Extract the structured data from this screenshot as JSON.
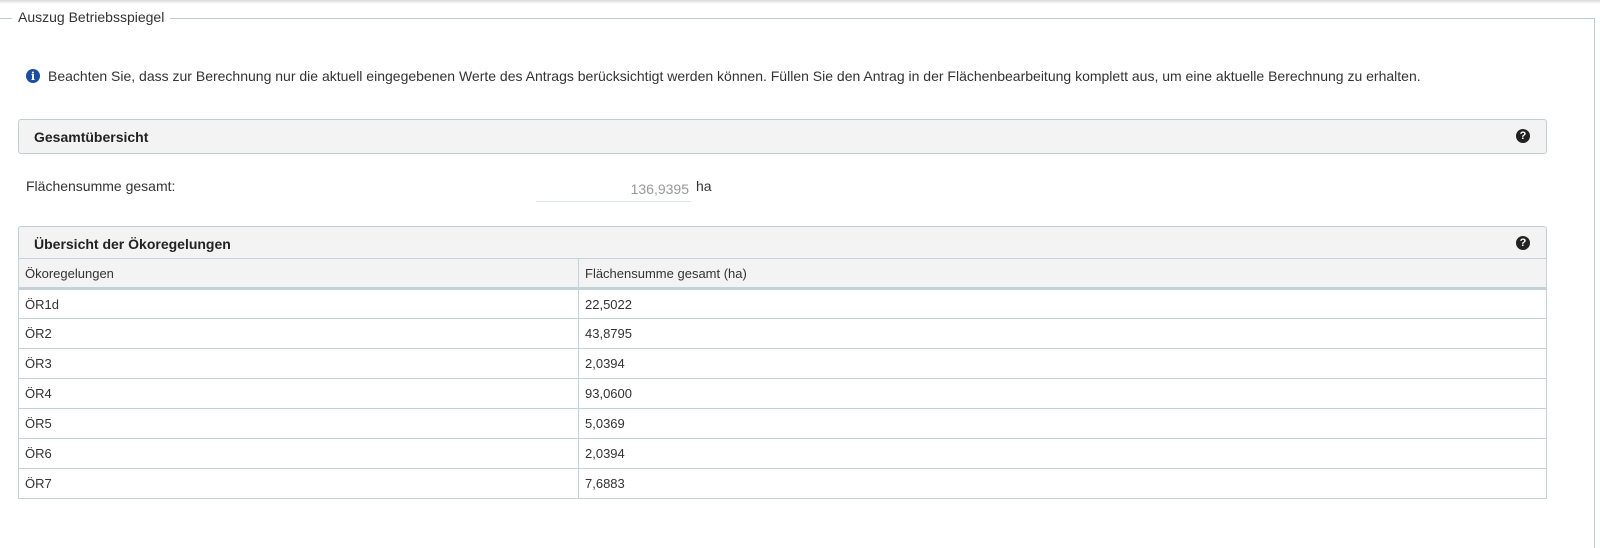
{
  "fieldset": {
    "legend": "Auszug Betriebsspiegel"
  },
  "info": {
    "icon": "info-circle-icon",
    "text": "Beachten Sie, dass zur Berechnung nur die aktuell eingegebenen Werte des Antrags berücksichtigt werden können. Füllen Sie den Antrag in der Flächenbearbeitung komplett aus, um eine aktuelle Berechnung zu erhalten."
  },
  "overview": {
    "title": "Gesamtübersicht",
    "label": "Flächensumme gesamt:",
    "value": "136,9395",
    "unit": "ha"
  },
  "eco": {
    "title": "Übersicht der Ökoregelungen",
    "columns": [
      "Ökoregelungen",
      "Flächensumme gesamt (ha)"
    ],
    "rows": [
      [
        "ÖR1d",
        "22,5022"
      ],
      [
        "ÖR2",
        "43,8795"
      ],
      [
        "ÖR3",
        "2,0394"
      ],
      [
        "ÖR4",
        "93,0600"
      ],
      [
        "ÖR5",
        "5,0369"
      ],
      [
        "ÖR6",
        "2,0394"
      ],
      [
        "ÖR7",
        "7,6883"
      ]
    ]
  }
}
